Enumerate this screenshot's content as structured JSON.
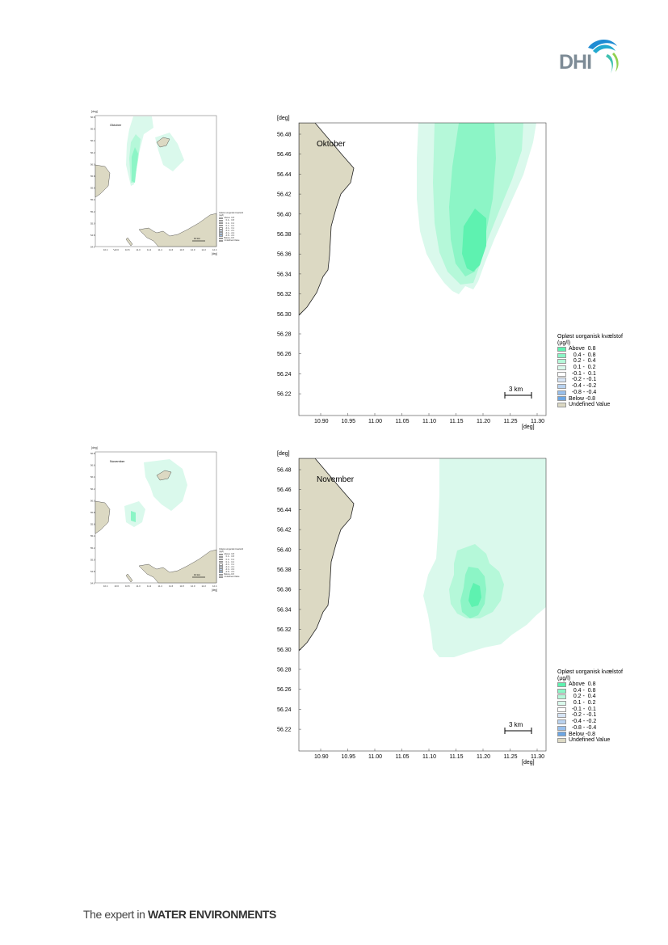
{
  "brand": {
    "logo_text": "DHI",
    "footer_prefix": "The expert in ",
    "footer_emphasis": "WATER ENVIRONMENTS"
  },
  "colors": {
    "land": "#dcd9c3",
    "c_above_0_8": "#5ef2b0",
    "c_0_4_0_8": "#8cf5c6",
    "c_0_2_0_4": "#b5f8d9",
    "c_0_1_0_2": "#daf9ec",
    "neutral": "#ffffff",
    "neg_1": "#d6e4f5",
    "neg_2": "#b9d3f0",
    "neg_3": "#98bfeb",
    "neg_4": "#6ca6e3"
  },
  "maps": [
    {
      "month": "Oktober",
      "axis_unit_y": "[deg]",
      "axis_unit_x": "[deg]",
      "y_ticks": [
        "56.48",
        "56.46",
        "56.44",
        "56.42",
        "56.40",
        "56.38",
        "56.36",
        "56.34",
        "56.32",
        "56.30",
        "56.28",
        "56.26",
        "56.24",
        "56.22"
      ],
      "x_ticks": [
        "10.90",
        "10.95",
        "11.00",
        "11.05",
        "11.10",
        "11.15",
        "11.20",
        "11.25",
        "11.30"
      ],
      "scale_label": "3 km",
      "mini_scale_label": "10 km",
      "mini_y_ticks": [
        "56.8",
        "56.6",
        "56.4",
        "56.2",
        "56.0",
        "55.8",
        "55.6",
        "55.4",
        "55.2",
        "55.0",
        "54.8",
        "54.6"
      ],
      "mini_x_ticks": [
        "10.4",
        "10.6",
        "10.8",
        "11.0",
        "11.2",
        "11.4",
        "11.6",
        "11.8",
        "12.0",
        "12.2",
        "12.4"
      ]
    },
    {
      "month": "November",
      "axis_unit_y": "[deg]",
      "axis_unit_x": "[deg]",
      "y_ticks": [
        "56.48",
        "56.46",
        "56.44",
        "56.42",
        "56.40",
        "56.38",
        "56.36",
        "56.34",
        "56.32",
        "56.30",
        "56.28",
        "56.26",
        "56.24",
        "56.22"
      ],
      "x_ticks": [
        "10.90",
        "10.95",
        "11.00",
        "11.05",
        "11.10",
        "11.15",
        "11.20",
        "11.25",
        "11.30"
      ],
      "scale_label": "3 km",
      "mini_scale_label": "10 km",
      "mini_y_ticks": [
        "56.8",
        "56.6",
        "56.4",
        "56.2",
        "56.0",
        "55.8",
        "55.6",
        "55.4",
        "55.2",
        "55.0",
        "54.8",
        "54.6"
      ],
      "mini_x_ticks": [
        "10.4",
        "10.6",
        "10.8",
        "11.0",
        "11.2",
        "11.4",
        "11.6",
        "11.8",
        "12.0",
        "12.2",
        "12.4"
      ]
    }
  ],
  "legend": {
    "title_line1": "Opløst uorganisk kvælstof",
    "title_line2": "(µg/l)",
    "items": [
      {
        "label": "Above  0.8",
        "color": "#5ef2b0"
      },
      {
        "label": "   0.4 -  0.8",
        "color": "#8cf5c6"
      },
      {
        "label": "   0.2 -  0.4",
        "color": "#b5f8d9"
      },
      {
        "label": "   0.1 -  0.2",
        "color": "#daf9ec"
      },
      {
        "label": "  -0.1 -  0.1",
        "color": "#ffffff"
      },
      {
        "label": "  -0.2 - -0.1",
        "color": "#d6e4f5"
      },
      {
        "label": "  -0.4 - -0.2",
        "color": "#b9d3f0"
      },
      {
        "label": "  -0.8 - -0.4",
        "color": "#98bfeb"
      },
      {
        "label": "Below -0.8",
        "color": "#6ca6e3"
      },
      {
        "label": "Undefined Value",
        "color": "#dcd9c3"
      }
    ]
  }
}
